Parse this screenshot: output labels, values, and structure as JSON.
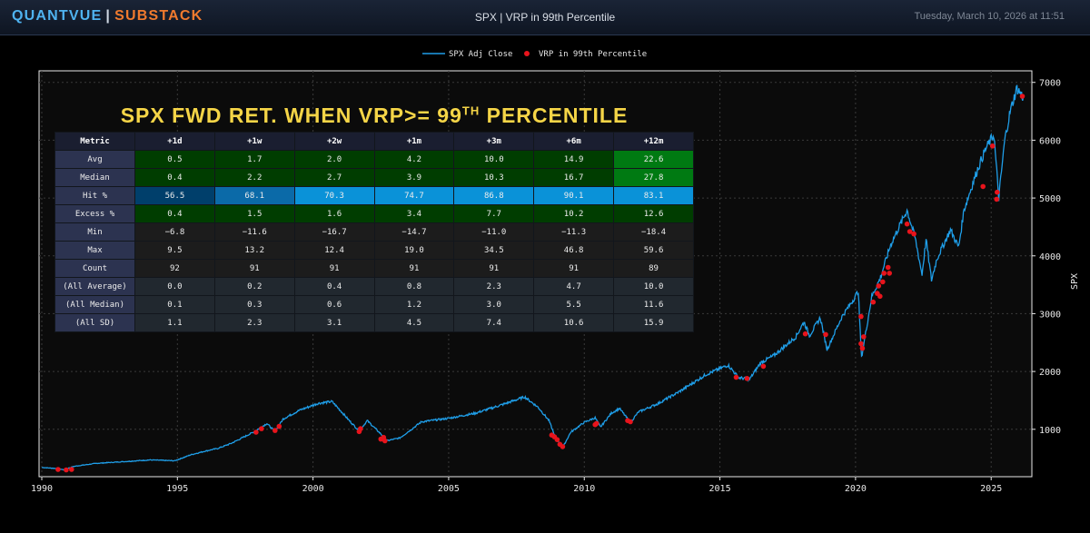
{
  "header": {
    "brand_left": "QUANTVUE",
    "brand_sep": "|",
    "brand_right": "SUBSTACK",
    "title": "SPX | VRP in 99th Percentile",
    "date": "Tuesday, March 10, 2026 at 11:51"
  },
  "colors": {
    "line": "#1f9ee8",
    "marker": "#e8141c",
    "title": "#f5d547",
    "green_dark": "#003d00",
    "green_mid": "#005000",
    "green_bright": "#007a12",
    "blue_dark": "#003f6b",
    "blue_mid": "#0b6aa8",
    "blue_bright": "#0a92d8",
    "neutral": "#1c1c1c",
    "neutral_blue": "#21282f"
  },
  "table": {
    "title_main": "SPX FWD RET. WHEN VRP>= 99",
    "title_sup": "TH",
    "title_tail": " PERCENTILE",
    "columns": [
      "Metric",
      "+1d",
      "+1w",
      "+2w",
      "+1m",
      "+3m",
      "+6m",
      "+12m"
    ],
    "rows": [
      {
        "label": "Avg",
        "values": [
          "0.5",
          "1.7",
          "2.0",
          "4.2",
          "10.0",
          "14.9",
          "22.6"
        ],
        "shades": [
          "g1",
          "g1",
          "g1",
          "g1",
          "g1",
          "g1",
          "g3"
        ]
      },
      {
        "label": "Median",
        "values": [
          "0.4",
          "2.2",
          "2.7",
          "3.9",
          "10.3",
          "16.7",
          "27.8"
        ],
        "shades": [
          "g1",
          "g1",
          "g1",
          "g1",
          "g1",
          "g1",
          "g3"
        ]
      },
      {
        "label": "Hit %",
        "values": [
          "56.5",
          "68.1",
          "70.3",
          "74.7",
          "86.8",
          "90.1",
          "83.1"
        ],
        "shades": [
          "b1",
          "b2",
          "b3",
          "b3",
          "b3",
          "b3",
          "b3"
        ]
      },
      {
        "label": "Excess %",
        "values": [
          "0.4",
          "1.5",
          "1.6",
          "3.4",
          "7.7",
          "10.2",
          "12.6"
        ],
        "shades": [
          "g1",
          "g1",
          "g1",
          "g1",
          "g1",
          "g1",
          "g1"
        ]
      },
      {
        "label": "Min",
        "values": [
          "−6.8",
          "−11.6",
          "−16.7",
          "−14.7",
          "−11.0",
          "−11.3",
          "−18.4"
        ],
        "shades": [
          "n",
          "n",
          "n",
          "n",
          "n",
          "n",
          "n"
        ]
      },
      {
        "label": "Max",
        "values": [
          "9.5",
          "13.2",
          "12.4",
          "19.0",
          "34.5",
          "46.8",
          "59.6"
        ],
        "shades": [
          "n",
          "n",
          "n",
          "n",
          "n",
          "n",
          "n"
        ]
      },
      {
        "label": "Count",
        "values": [
          "92",
          "91",
          "91",
          "91",
          "91",
          "91",
          "89"
        ],
        "shades": [
          "n",
          "n",
          "n",
          "n",
          "n",
          "n",
          "n"
        ]
      },
      {
        "label": "(All Average)",
        "values": [
          "0.0",
          "0.2",
          "0.4",
          "0.8",
          "2.3",
          "4.7",
          "10.0"
        ],
        "shades": [
          "nb",
          "nb",
          "nb",
          "nb",
          "nb",
          "nb",
          "nb"
        ]
      },
      {
        "label": "(All Median)",
        "values": [
          "0.1",
          "0.3",
          "0.6",
          "1.2",
          "3.0",
          "5.5",
          "11.6"
        ],
        "shades": [
          "nb",
          "nb",
          "nb",
          "nb",
          "nb",
          "nb",
          "nb"
        ]
      },
      {
        "label": "(All SD)",
        "values": [
          "1.1",
          "2.3",
          "3.1",
          "4.5",
          "7.4",
          "10.6",
          "15.9"
        ],
        "shades": [
          "nb",
          "nb",
          "nb",
          "nb",
          "nb",
          "nb",
          "nb"
        ]
      }
    ]
  },
  "chart_data": {
    "type": "line",
    "title": "SPX | VRP in 99th Percentile",
    "xlabel": "",
    "ylabel": "SPX",
    "xlim": [
      1989.9,
      2026.5
    ],
    "ylim": [
      180,
      7200
    ],
    "x_ticks": [
      1990,
      1995,
      2000,
      2005,
      2010,
      2015,
      2020,
      2025
    ],
    "y_ticks": [
      1000,
      2000,
      3000,
      4000,
      5000,
      6000,
      7000
    ],
    "legend": {
      "position": "top-center",
      "entries": [
        "SPX Adj Close",
        "VRP in 99th Percentile"
      ]
    },
    "series": [
      {
        "name": "SPX Adj Close",
        "type": "line",
        "points": [
          [
            1990.0,
            340
          ],
          [
            1990.6,
            320
          ],
          [
            1990.8,
            300
          ],
          [
            1991.2,
            360
          ],
          [
            1992.0,
            410
          ],
          [
            1993.0,
            440
          ],
          [
            1994.0,
            470
          ],
          [
            1994.9,
            455
          ],
          [
            1995.5,
            560
          ],
          [
            1996.0,
            620
          ],
          [
            1996.5,
            670
          ],
          [
            1997.0,
            760
          ],
          [
            1997.8,
            950
          ],
          [
            1998.3,
            1100
          ],
          [
            1998.6,
            960
          ],
          [
            1998.9,
            1180
          ],
          [
            1999.5,
            1330
          ],
          [
            2000.2,
            1450
          ],
          [
            2000.7,
            1480
          ],
          [
            2001.0,
            1330
          ],
          [
            2001.3,
            1170
          ],
          [
            2001.7,
            970
          ],
          [
            2002.0,
            1150
          ],
          [
            2002.5,
            920
          ],
          [
            2002.7,
            800
          ],
          [
            2003.2,
            850
          ],
          [
            2003.6,
            990
          ],
          [
            2004.0,
            1130
          ],
          [
            2005.0,
            1190
          ],
          [
            2006.0,
            1280
          ],
          [
            2007.0,
            1430
          ],
          [
            2007.8,
            1560
          ],
          [
            2008.3,
            1380
          ],
          [
            2008.7,
            1150
          ],
          [
            2008.9,
            900
          ],
          [
            2009.2,
            680
          ],
          [
            2009.5,
            950
          ],
          [
            2010.0,
            1120
          ],
          [
            2010.4,
            1200
          ],
          [
            2010.6,
            1040
          ],
          [
            2011.0,
            1280
          ],
          [
            2011.3,
            1360
          ],
          [
            2011.7,
            1120
          ],
          [
            2012.0,
            1300
          ],
          [
            2012.7,
            1440
          ],
          [
            2013.5,
            1650
          ],
          [
            2014.5,
            1950
          ],
          [
            2015.3,
            2110
          ],
          [
            2015.7,
            1890
          ],
          [
            2016.1,
            1870
          ],
          [
            2016.5,
            2150
          ],
          [
            2017.0,
            2280
          ],
          [
            2017.8,
            2600
          ],
          [
            2018.1,
            2860
          ],
          [
            2018.3,
            2620
          ],
          [
            2018.7,
            2930
          ],
          [
            2018.95,
            2380
          ],
          [
            2019.5,
            2950
          ],
          [
            2019.9,
            3230
          ],
          [
            2020.1,
            3390
          ],
          [
            2020.22,
            2240
          ],
          [
            2020.6,
            3300
          ],
          [
            2020.9,
            3600
          ],
          [
            2021.3,
            4200
          ],
          [
            2021.9,
            4790
          ],
          [
            2022.2,
            4300
          ],
          [
            2022.45,
            3680
          ],
          [
            2022.6,
            4280
          ],
          [
            2022.8,
            3580
          ],
          [
            2023.0,
            3950
          ],
          [
            2023.5,
            4450
          ],
          [
            2023.8,
            4150
          ],
          [
            2024.0,
            4800
          ],
          [
            2024.5,
            5500
          ],
          [
            2024.8,
            5850
          ],
          [
            2025.1,
            6100
          ],
          [
            2025.28,
            5000
          ],
          [
            2025.5,
            6000
          ],
          [
            2025.7,
            6500
          ],
          [
            2025.95,
            6900
          ],
          [
            2026.1,
            6800
          ],
          [
            2026.18,
            6740
          ]
        ]
      },
      {
        "name": "VRP in 99th Percentile",
        "type": "scatter",
        "points": [
          [
            1990.6,
            305
          ],
          [
            1990.9,
            298
          ],
          [
            1991.1,
            305
          ],
          [
            1997.9,
            950
          ],
          [
            1998.1,
            1010
          ],
          [
            1998.6,
            980
          ],
          [
            1998.75,
            1050
          ],
          [
            2001.7,
            960
          ],
          [
            2001.75,
            1010
          ],
          [
            2002.5,
            830
          ],
          [
            2002.6,
            860
          ],
          [
            2002.65,
            800
          ],
          [
            2008.8,
            900
          ],
          [
            2008.9,
            870
          ],
          [
            2009.0,
            820
          ],
          [
            2009.1,
            740
          ],
          [
            2009.2,
            700
          ],
          [
            2010.4,
            1080
          ],
          [
            2010.45,
            1100
          ],
          [
            2011.6,
            1150
          ],
          [
            2011.7,
            1130
          ],
          [
            2015.6,
            1900
          ],
          [
            2016.0,
            1880
          ],
          [
            2016.6,
            2090
          ],
          [
            2018.15,
            2650
          ],
          [
            2018.9,
            2640
          ],
          [
            2020.2,
            2480
          ],
          [
            2020.25,
            2400
          ],
          [
            2020.3,
            2600
          ],
          [
            2020.2,
            2950
          ],
          [
            2020.65,
            3200
          ],
          [
            2020.8,
            3350
          ],
          [
            2020.85,
            3480
          ],
          [
            2020.9,
            3300
          ],
          [
            2021.0,
            3550
          ],
          [
            2021.05,
            3700
          ],
          [
            2021.2,
            3800
          ],
          [
            2021.25,
            3700
          ],
          [
            2021.9,
            4550
          ],
          [
            2022.0,
            4420
          ],
          [
            2022.15,
            4380
          ],
          [
            2024.7,
            5200
          ],
          [
            2025.05,
            5900
          ],
          [
            2025.2,
            4980
          ],
          [
            2025.22,
            5100
          ],
          [
            2026.15,
            6760
          ]
        ]
      }
    ]
  }
}
